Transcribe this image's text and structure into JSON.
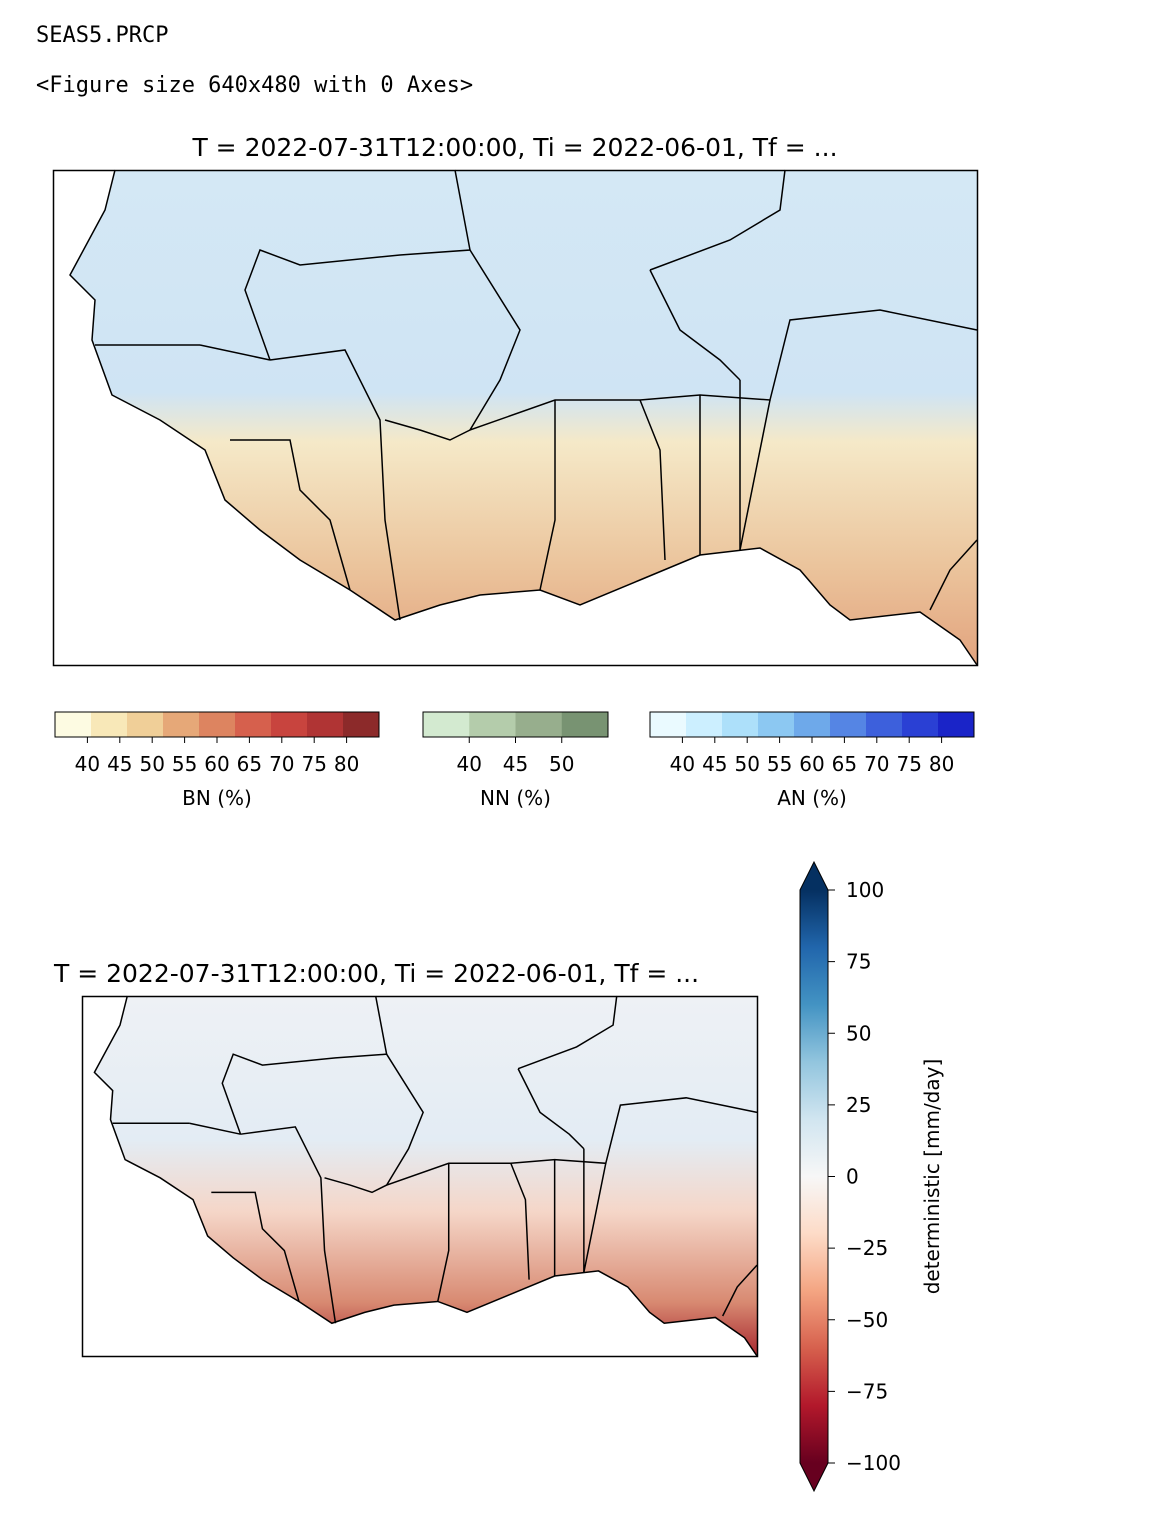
{
  "header_lines": [
    "SEAS5.PRCP",
    "<Figure size 640x480 with 0 Axes>"
  ],
  "figure1": {
    "title": "T = 2022-07-31T12:00:00, Ti = 2022-06-01, Tf = ...",
    "colorbars": [
      {
        "label": "BN (%)",
        "lim": [
          35,
          85
        ],
        "ticks": [
          40,
          45,
          50,
          55,
          60,
          65,
          70,
          75,
          80
        ],
        "colors": [
          "#fdfbe2",
          "#f8e8b8",
          "#f0cf98",
          "#e6a878",
          "#dd8460",
          "#d6604d",
          "#c8443e",
          "#b03434",
          "#8c2a2a"
        ]
      },
      {
        "label": "NN (%)",
        "lim": [
          35,
          55
        ],
        "ticks": [
          40,
          45,
          50
        ],
        "colors": [
          "#d3ead0",
          "#b4ccab",
          "#97ae8d",
          "#789372"
        ]
      },
      {
        "label": "AN (%)",
        "lim": [
          35,
          85
        ],
        "ticks": [
          40,
          45,
          50,
          55,
          60,
          65,
          70,
          75,
          80
        ],
        "colors": [
          "#eafaff",
          "#ccefff",
          "#ade0fa",
          "#8cc8f2",
          "#6ea9ea",
          "#5585e4",
          "#3d60dc",
          "#2a40d4",
          "#1a24c8"
        ]
      }
    ]
  },
  "figure2": {
    "title": "T = 2022-07-31T12:00:00, Ti = 2022-06-01, Tf = ...",
    "colorbar": {
      "label": "deterministic [mm/day]",
      "lim": [
        -100,
        100
      ],
      "ticks": [
        100,
        75,
        50,
        25,
        0,
        {
          "value": -25,
          "label": "−25"
        },
        {
          "value": -50,
          "label": "−50"
        },
        {
          "value": -75,
          "label": "−75"
        },
        {
          "value": -100,
          "label": "−100"
        }
      ],
      "colors": [
        "#67001f",
        "#b2182b",
        "#d6604d",
        "#f4a582",
        "#fddbc7",
        "#f7f7f7",
        "#d1e5f0",
        "#92c5de",
        "#4393c3",
        "#2166ac",
        "#053061"
      ]
    }
  }
}
